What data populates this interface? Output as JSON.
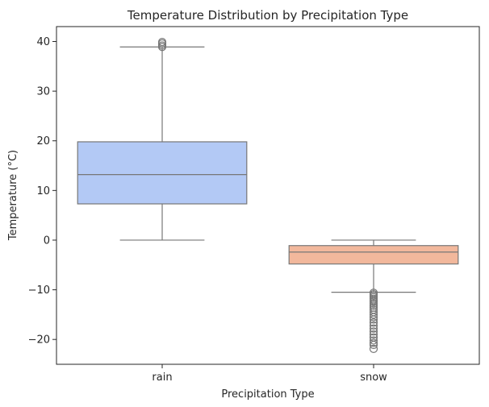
{
  "chart_data": {
    "type": "box",
    "title": "Temperature Distribution by Precipitation Type",
    "xlabel": "Precipitation Type",
    "ylabel": "Temperature (°C)",
    "ylim": [
      -25,
      43
    ],
    "yticks": [
      -20,
      -10,
      0,
      10,
      20,
      30,
      40
    ],
    "ytick_labels": [
      "−20",
      "−10",
      "0",
      "10",
      "20",
      "30",
      "40"
    ],
    "grid": false,
    "categories": [
      "rain",
      "snow"
    ],
    "boxes": [
      {
        "category": "rain",
        "color": "#b3c9f5",
        "whisker_low": 0,
        "q1": 7.3,
        "median": 13.2,
        "q3": 19.8,
        "whisker_high": 38.9,
        "outliers": [
          38.9,
          39.2,
          39.6,
          39.9
        ]
      },
      {
        "category": "snow",
        "color": "#f2b89c",
        "whisker_low": -10.5,
        "q1": -4.8,
        "median": -2.4,
        "q3": -1.1,
        "whisker_high": 0,
        "outliers": [
          -10.6,
          -10.9,
          -11.2,
          -11.5,
          -11.8,
          -12.1,
          -12.4,
          -12.8,
          -13.2,
          -13.6,
          -14.0,
          -14.5,
          -15.0,
          -15.5,
          -16.0,
          -16.6,
          -17.2,
          -17.8,
          -18.4,
          -19.0,
          -19.6,
          -20.2,
          -20.7,
          -21.1,
          -21.9
        ]
      }
    ]
  }
}
